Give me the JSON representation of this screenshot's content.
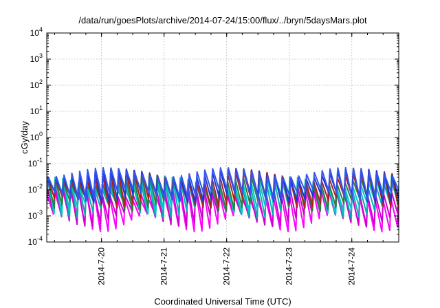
{
  "chart_data": {
    "type": "line",
    "title": "/data/run/goesPlots/archive/2014-07-24/15:00/flux/../bryn/5daysMars.plot",
    "xlabel": "Coordinated Universal Time (UTC)",
    "ylabel": "cGy/day",
    "yscale": "log",
    "ylim": [
      0.0001,
      10000
    ],
    "y_ticks": [
      {
        "base": "10",
        "exp": "-4",
        "value": 0.0001
      },
      {
        "base": "10",
        "exp": "-3",
        "value": 0.001
      },
      {
        "base": "10",
        "exp": "-2",
        "value": 0.01
      },
      {
        "base": "10",
        "exp": "-1",
        "value": 0.1
      },
      {
        "base": "10",
        "exp": "0",
        "value": 1
      },
      {
        "base": "10",
        "exp": "1",
        "value": 10
      },
      {
        "base": "10",
        "exp": "2",
        "value": 100
      },
      {
        "base": "10",
        "exp": "3",
        "value": 1000
      },
      {
        "base": "10",
        "exp": "4",
        "value": 10000
      }
    ],
    "xlim": [
      "2014-07-19 03:00",
      "2014-07-24 18:00"
    ],
    "x_ticks": [
      "2014-7-20",
      "2014-7-21",
      "2014-7-22",
      "2014-7-23",
      "2014-7-24"
    ],
    "grid": true,
    "legend": "none",
    "series": [
      {
        "color": "#ff00ff",
        "pattern": "sawtooth",
        "cycles_per_day": 8,
        "peak_range": [
          0.004,
          0.012
        ],
        "trough_range": [
          0.00025,
          0.0012
        ]
      },
      {
        "color": "#d000d0",
        "pattern": "sawtooth",
        "cycles_per_day": 8,
        "peak_range": [
          0.006,
          0.016
        ],
        "trough_range": [
          0.0004,
          0.0016
        ]
      },
      {
        "color": "#00b0b0",
        "pattern": "sawtooth",
        "cycles_per_day": 8,
        "peak_range": [
          0.01,
          0.03
        ],
        "trough_range": [
          0.0008,
          0.003
        ]
      },
      {
        "color": "#00c8c8",
        "pattern": "sawtooth",
        "cycles_per_day": 8,
        "peak_range": [
          0.012,
          0.035
        ],
        "trough_range": [
          0.0012,
          0.004
        ]
      },
      {
        "color": "#2d7f3f",
        "pattern": "sawtooth",
        "cycles_per_day": 8,
        "peak_range": [
          0.015,
          0.04
        ],
        "trough_range": [
          0.0015,
          0.005
        ]
      },
      {
        "color": "#b02020",
        "pattern": "sawtooth",
        "cycles_per_day": 8,
        "peak_range": [
          0.02,
          0.055
        ],
        "trough_range": [
          0.002,
          0.006
        ]
      },
      {
        "color": "#2233cc",
        "pattern": "sawtooth",
        "cycles_per_day": 8,
        "peak_range": [
          0.025,
          0.065
        ],
        "trough_range": [
          0.003,
          0.008
        ]
      },
      {
        "color": "#3355ee",
        "pattern": "sawtooth",
        "cycles_per_day": 8,
        "peak_range": [
          0.03,
          0.07
        ],
        "trough_range": [
          0.004,
          0.01
        ]
      }
    ]
  }
}
